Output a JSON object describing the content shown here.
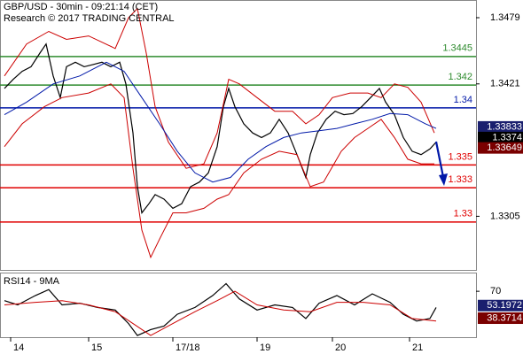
{
  "chart_data": [
    {
      "type": "line",
      "title": "GBP/USD - 30min - 09:21:14 (CET)",
      "subtitle": "Research © 2017 TRADING CENTRAL",
      "xlim": [
        0,
        107.4
      ],
      "ylim": [
        1.3258,
        1.34945
      ],
      "yticks": [
        1.3479,
        1.3421,
        1.3305
      ],
      "levels": [
        {
          "value": 1.3445,
          "color": "#2e8b2e"
        },
        {
          "value": 1.342,
          "color": "#2e8b2e"
        },
        {
          "value": 1.34,
          "color": "#0018a8"
        },
        {
          "value": 1.335,
          "color": "#e00000"
        },
        {
          "value": 1.333,
          "color": "#e00000"
        },
        {
          "value": 1.33,
          "color": "#e00000"
        }
      ],
      "price_labels": [
        {
          "value": 1.33833,
          "color": "#1a1f6e"
        },
        {
          "value": 1.3374,
          "color": "#000000"
        },
        {
          "value": 1.33649,
          "color": "#7a0000"
        }
      ],
      "series": [
        {
          "color": "#000000",
          "x": [
            1,
            3,
            5,
            7,
            9,
            10.4,
            12,
            13.6,
            15,
            17,
            19,
            21,
            23,
            25,
            27,
            28.4,
            30,
            31,
            32,
            33.6,
            35,
            37,
            39,
            41,
            43,
            45,
            47,
            49,
            50.4,
            51.6,
            53,
            55,
            57,
            59,
            61,
            63,
            65,
            67,
            69,
            70,
            71.6,
            73.6,
            75.6,
            77.6,
            79.6,
            81.6,
            83.6,
            85.6,
            87,
            89,
            91,
            93,
            95,
            97,
            98.4
          ],
          "values": [
            1.3417,
            1.3425,
            1.3432,
            1.3436,
            1.3448,
            1.3456,
            1.3428,
            1.3409,
            1.3436,
            1.344,
            1.3436,
            1.3438,
            1.344,
            1.3436,
            1.344,
            1.3421,
            1.3378,
            1.3331,
            1.3308,
            1.3316,
            1.3324,
            1.332,
            1.3312,
            1.3316,
            1.3331,
            1.3335,
            1.3343,
            1.3366,
            1.3401,
            1.3417,
            1.3401,
            1.3386,
            1.3378,
            1.3374,
            1.3378,
            1.339,
            1.3378,
            1.3359,
            1.3339,
            1.3359,
            1.3378,
            1.339,
            1.3397,
            1.3394,
            1.3395,
            1.3401,
            1.3409,
            1.3417,
            1.3405,
            1.3394,
            1.3374,
            1.3362,
            1.3359,
            1.3364,
            1.337
          ]
        },
        {
          "color": "#cc0000",
          "x": [
            1,
            6,
            11,
            15,
            20,
            26,
            29,
            31,
            33,
            35,
            38,
            42,
            46,
            49,
            51.6,
            54,
            58,
            62,
            66,
            69,
            72,
            75,
            79,
            83,
            86,
            89,
            92,
            95,
            98
          ],
          "values": [
            1.3428,
            1.3456,
            1.3467,
            1.346,
            1.3463,
            1.3452,
            1.3479,
            1.3487,
            1.3448,
            1.3401,
            1.337,
            1.3347,
            1.3351,
            1.3378,
            1.3425,
            1.3421,
            1.3409,
            1.3397,
            1.3397,
            1.3386,
            1.3394,
            1.3409,
            1.3413,
            1.3413,
            1.3409,
            1.3421,
            1.3418,
            1.3405,
            1.3378
          ]
        },
        {
          "color": "#cc0000",
          "x": [
            1,
            5,
            10,
            14,
            20,
            25,
            28,
            30,
            32,
            34,
            36,
            39,
            42,
            46,
            49,
            51.6,
            55,
            59,
            63,
            67,
            70,
            73,
            77,
            80,
            83,
            86,
            89,
            92,
            95,
            98
          ],
          "values": [
            1.3366,
            1.3386,
            1.3401,
            1.3409,
            1.3413,
            1.3421,
            1.3409,
            1.3347,
            1.3293,
            1.3269,
            1.3285,
            1.3308,
            1.3308,
            1.3312,
            1.332,
            1.3324,
            1.3343,
            1.3355,
            1.3362,
            1.3359,
            1.3331,
            1.3335,
            1.3362,
            1.3374,
            1.3382,
            1.339,
            1.3374,
            1.3355,
            1.3351,
            1.3351
          ]
        },
        {
          "color": "#0018a8",
          "x": [
            1,
            6,
            12,
            18,
            24,
            28,
            32,
            36,
            40,
            44,
            48,
            52,
            56,
            60,
            64,
            68,
            72,
            76,
            80,
            84,
            88,
            92,
            96,
            98.4
          ],
          "values": [
            1.3394,
            1.3405,
            1.3421,
            1.3428,
            1.344,
            1.3432,
            1.3409,
            1.3386,
            1.3362,
            1.3343,
            1.3335,
            1.3339,
            1.3355,
            1.3366,
            1.3374,
            1.3378,
            1.338,
            1.3382,
            1.3386,
            1.339,
            1.3395,
            1.3394,
            1.3386,
            1.3382
          ]
        }
      ]
    },
    {
      "type": "line",
      "title": "RSI14 - 9MA",
      "xlim": [
        0,
        107.4
      ],
      "ylim": [
        16,
        92
      ],
      "yticks": [
        70
      ],
      "xticks": [
        {
          "value": 2.4,
          "label": "14"
        },
        {
          "value": 20,
          "label": "15"
        },
        {
          "value": 39,
          "label": "17/18"
        },
        {
          "value": 58,
          "label": "19"
        },
        {
          "value": 75,
          "label": "20"
        },
        {
          "value": 92.4,
          "label": "21"
        }
      ],
      "price_labels": [
        {
          "value": 53.1972,
          "color": "#1a1f6e"
        },
        {
          "value": 38.3714,
          "color": "#7a0000"
        }
      ],
      "series": [
        {
          "color": "#000000",
          "x": [
            1,
            4,
            8,
            11,
            14,
            18,
            22,
            26,
            29,
            31,
            34,
            37,
            40,
            44,
            48,
            51,
            54,
            58,
            62,
            66,
            69,
            72,
            76,
            80,
            84,
            88,
            91,
            94,
            97,
            98.4
          ],
          "values": [
            59,
            54,
            65,
            72,
            54,
            56,
            51,
            48,
            32,
            18,
            25,
            29,
            43,
            51,
            65,
            79,
            61,
            48,
            54,
            51,
            38,
            56,
            65,
            54,
            67,
            57,
            43,
            35,
            38,
            51
          ]
        },
        {
          "color": "#cc0000",
          "x": [
            1,
            8,
            14,
            20,
            26,
            30,
            34,
            39,
            44,
            49,
            53,
            58,
            64,
            70,
            76,
            82,
            88,
            93,
            98.4
          ],
          "values": [
            54,
            57,
            59,
            54,
            46,
            32,
            18,
            32,
            46,
            59,
            70,
            54,
            48,
            46,
            57,
            57,
            54,
            38,
            35
          ]
        }
      ]
    }
  ]
}
